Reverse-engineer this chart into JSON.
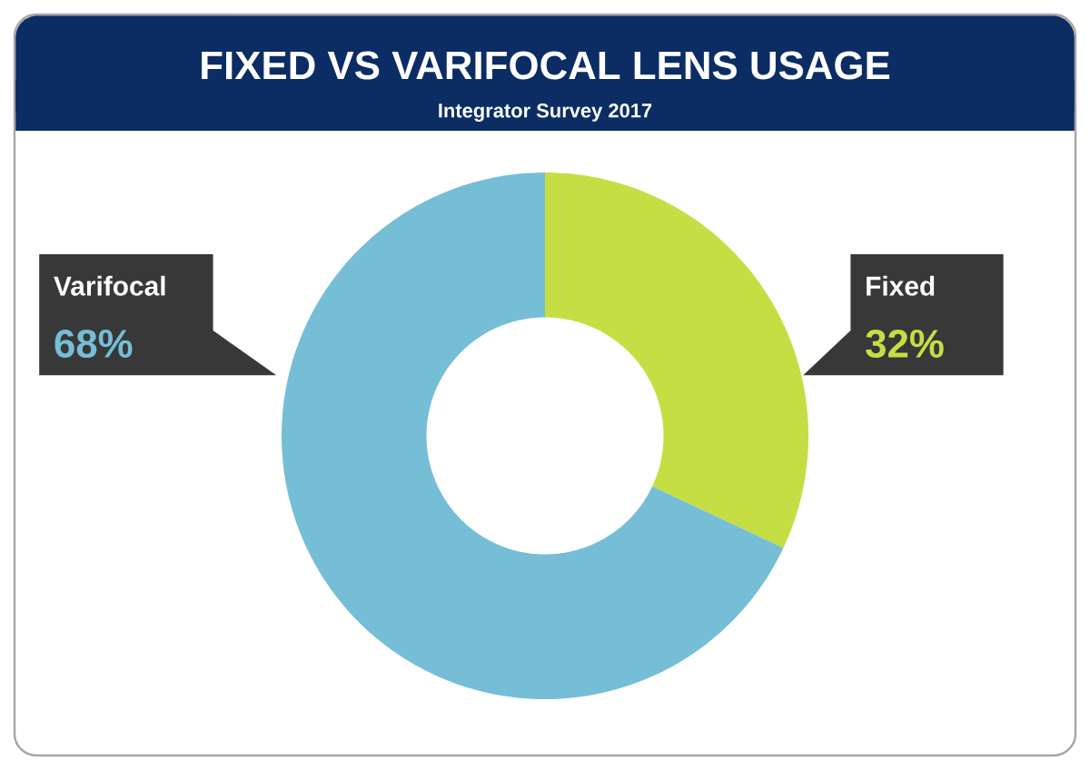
{
  "chart_data": {
    "type": "donut",
    "title": "FIXED VS VARIFOCAL LENS USAGE",
    "subtitle": "Integrator Survey 2017",
    "categories": [
      "Fixed",
      "Varifocal"
    ],
    "values": [
      32,
      68
    ],
    "colors": [
      "#c4de44",
      "#75bed6"
    ],
    "value_labels": [
      "32%",
      "68%"
    ]
  }
}
